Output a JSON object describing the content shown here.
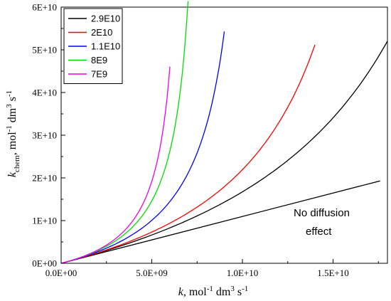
{
  "chart_data": {
    "type": "line",
    "xlabel": {
      "italic": "k",
      "rest": ", mol",
      "sup1": "-1",
      "mid": " dm",
      "sup2": "3",
      "tail": " s",
      "sup3": "-1"
    },
    "ylabel": {
      "italic": "k",
      "sub": "chem",
      "rest": ", mol",
      "sup1": "-1",
      "mid": " dm",
      "sup2": "3",
      "tail": " s",
      "sup3": "-1"
    },
    "xlim": [
      0,
      18000000000.0
    ],
    "ylim": [
      0,
      60000000000.0
    ],
    "xticks": [
      0,
      5000000000.0,
      10000000000.0,
      15000000000.0
    ],
    "xtick_labels": [
      "0.0E+00",
      "5.0E+09",
      "1.0E+10",
      "1.5E+10"
    ],
    "yticks": [
      0,
      10000000000.0,
      20000000000.0,
      30000000000.0,
      40000000000.0,
      50000000000.0,
      60000000000.0
    ],
    "ytick_labels": [
      "0E+00",
      "1E+10",
      "2E+10",
      "3E+10",
      "4E+10",
      "5E+10",
      "6E+10"
    ],
    "grid": false,
    "legend_position": "top-left",
    "series": [
      {
        "name": "2.9E10",
        "color": "#000000",
        "kd": 29000000000.0,
        "x_max": 18000000000.0
      },
      {
        "name": "2E10",
        "color": "#ff0000",
        "kd": 20000000000.0,
        "x_max": 14000000000.0
      },
      {
        "name": "1.1E10",
        "color": "#0000ff",
        "kd": 11000000000.0,
        "x_max": 9000000000.0
      },
      {
        "name": "8E9",
        "color": "#00dd00",
        "kd": 8000000000.0,
        "x_max": 7000000000.0
      },
      {
        "name": "7E9",
        "color": "#ee00ee",
        "kd": 7000000000.0,
        "x_max": 6000000000.0
      }
    ],
    "reference_line": {
      "color": "#000000",
      "x": [
        0,
        17600000000.0
      ],
      "y": [
        0,
        19300000000.0
      ]
    },
    "annotation": [
      "No diffusion",
      "effect"
    ]
  }
}
